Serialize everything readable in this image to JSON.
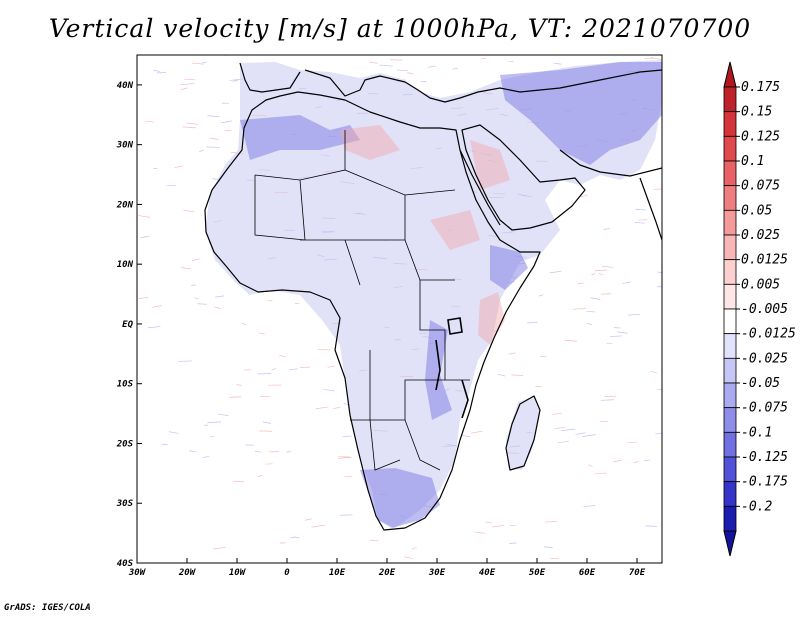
{
  "title": "Vertical velocity [m/s] at 1000hPa, VT: 2021070700",
  "footer": "GrADS: IGES/COLA",
  "map": {
    "lon_range": [
      -30,
      75
    ],
    "lat_range": [
      -40,
      45
    ],
    "x_ticks": [
      {
        "lon": -30,
        "label": "30W"
      },
      {
        "lon": -20,
        "label": "20W"
      },
      {
        "lon": -10,
        "label": "10W"
      },
      {
        "lon": 0,
        "label": "0"
      },
      {
        "lon": 10,
        "label": "10E"
      },
      {
        "lon": 20,
        "label": "20E"
      },
      {
        "lon": 30,
        "label": "30E"
      },
      {
        "lon": 40,
        "label": "40E"
      },
      {
        "lon": 50,
        "label": "50E"
      },
      {
        "lon": 60,
        "label": "60E"
      },
      {
        "lon": 70,
        "label": "70E"
      }
    ],
    "y_ticks": [
      {
        "lat": 40,
        "label": "40N"
      },
      {
        "lat": 30,
        "label": "30N"
      },
      {
        "lat": 20,
        "label": "20N"
      },
      {
        "lat": 10,
        "label": "10N"
      },
      {
        "lat": 0,
        "label": "EQ"
      },
      {
        "lat": -10,
        "label": "10S"
      },
      {
        "lat": -20,
        "label": "20S"
      },
      {
        "lat": -30,
        "label": "30S"
      },
      {
        "lat": -40,
        "label": "40S"
      }
    ]
  },
  "colorbar": {
    "levels": [
      {
        "label": "0.175",
        "color": "#c0222a"
      },
      {
        "label": "0.15",
        "color": "#d4343a"
      },
      {
        "label": "0.125",
        "color": "#e04a4e"
      },
      {
        "label": "0.1",
        "color": "#e86266"
      },
      {
        "label": "0.075",
        "color": "#ef7e80"
      },
      {
        "label": "0.05",
        "color": "#f49a9b"
      },
      {
        "label": "0.025",
        "color": "#f8b6b6"
      },
      {
        "label": "0.0125",
        "color": "#fbd0cf"
      },
      {
        "label": "0.005",
        "color": "#fde6e5"
      },
      {
        "label": "-0.005",
        "color": "#ffffff"
      },
      {
        "label": "-0.0125",
        "color": "#e2e2fb"
      },
      {
        "label": "-0.025",
        "color": "#c6c6f6"
      },
      {
        "label": "-0.05",
        "color": "#aaaaf0"
      },
      {
        "label": "-0.075",
        "color": "#8e8eea"
      },
      {
        "label": "-0.1",
        "color": "#7070e2"
      },
      {
        "label": "-0.125",
        "color": "#5252d8"
      },
      {
        "label": "-0.175",
        "color": "#3434c8"
      },
      {
        "label": "-0.2",
        "color": "#1c1cb0"
      }
    ],
    "top_triangle_color": "#b01820",
    "bottom_triangle_color": "#14149a"
  }
}
